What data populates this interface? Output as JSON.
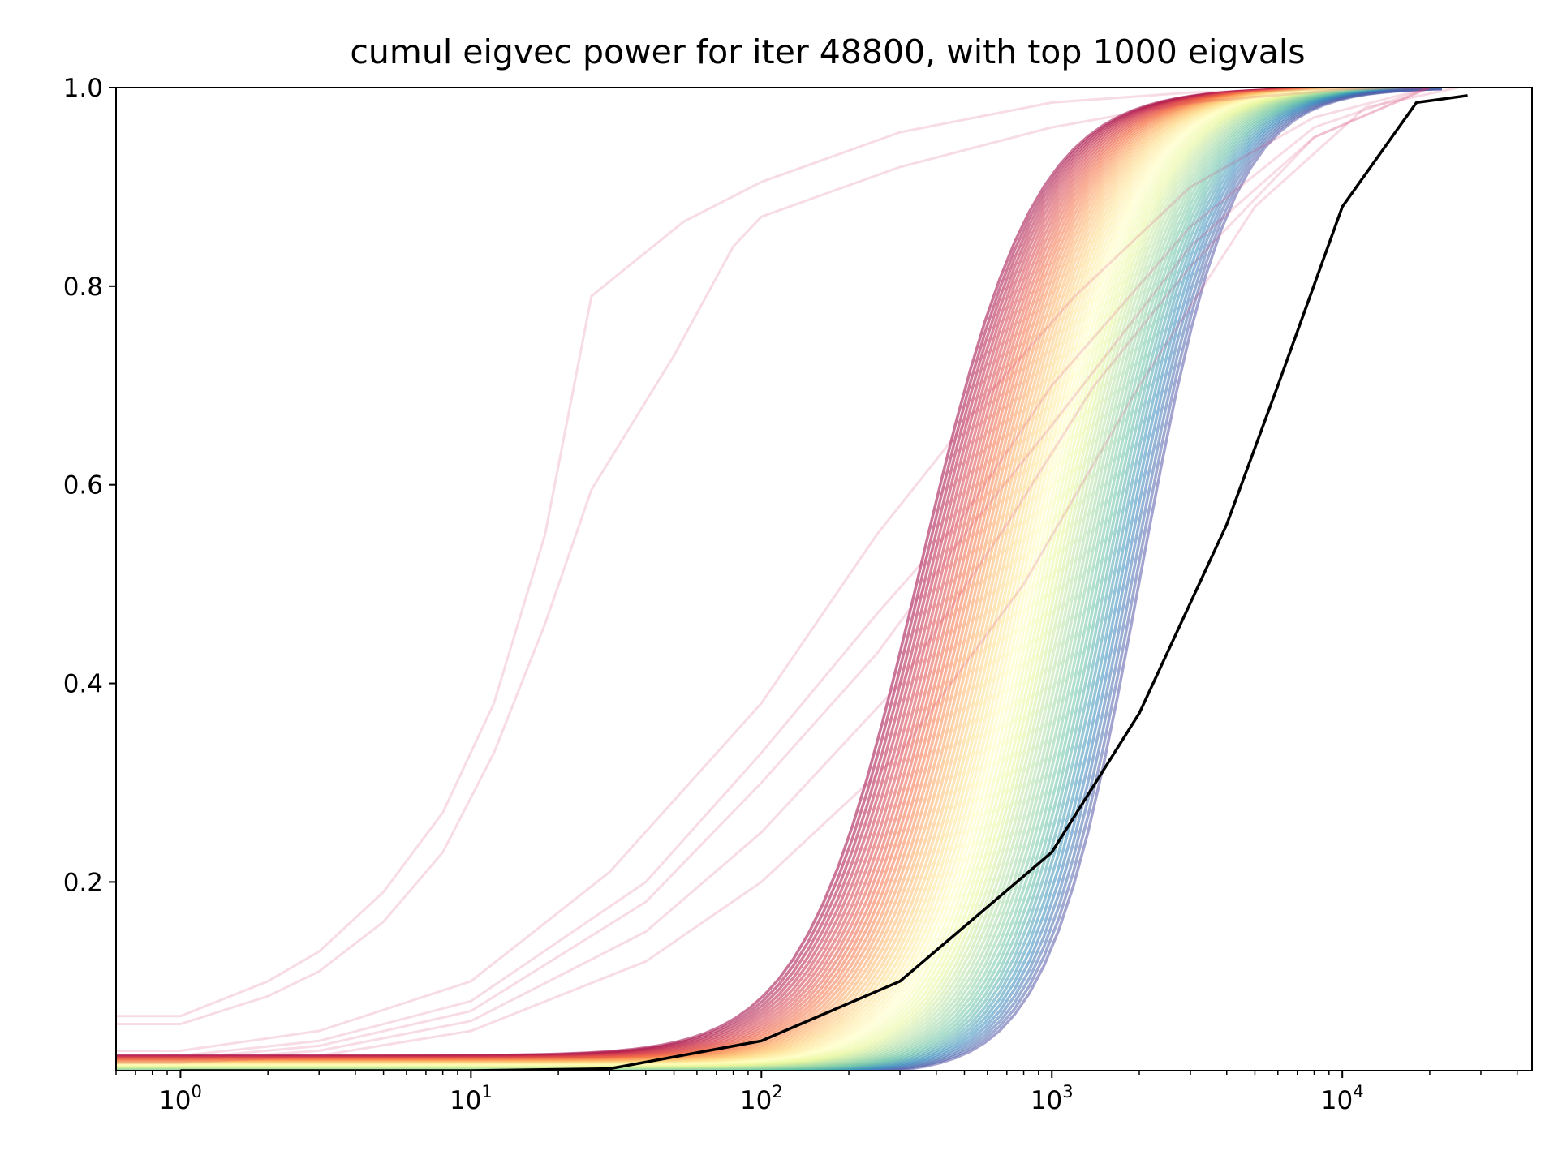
{
  "chart_data": {
    "type": "line",
    "title": "cumul eigvec power for iter 48800, with top 1000 eigvals",
    "xlabel": "",
    "ylabel": "",
    "x_scale": "log",
    "xlim": [
      0.6,
      45000
    ],
    "ylim": [
      0.01,
      1.0
    ],
    "grid": false,
    "legend": "none",
    "x_tick_labels": [
      {
        "base": "10",
        "exp": "0",
        "value": 1
      },
      {
        "base": "10",
        "exp": "1",
        "value": 10
      },
      {
        "base": "10",
        "exp": "2",
        "value": 100
      },
      {
        "base": "10",
        "exp": "3",
        "value": 1000
      },
      {
        "base": "10",
        "exp": "4",
        "value": 10000
      }
    ],
    "y_ticks": [
      {
        "label": "0.2",
        "value": 0.2
      },
      {
        "label": "0.4",
        "value": 0.4
      },
      {
        "label": "0.6",
        "value": 0.6
      },
      {
        "label": "0.8",
        "value": 0.8
      },
      {
        "label": "1.0",
        "value": 1.0
      }
    ],
    "colors": {
      "reference": "#000000",
      "bundle_colormap": "Spectral",
      "outlier": "#d23c6e"
    },
    "series": [
      {
        "color": "#000000",
        "x": [
          1,
          10,
          30,
          100,
          300,
          1000,
          2000,
          4000,
          6000,
          10000,
          18000,
          27000
        ],
        "y": [
          0.0,
          0.001,
          0.012,
          0.04,
          0.1,
          0.23,
          0.37,
          0.56,
          0.7,
          0.88,
          0.985,
          0.992
        ]
      },
      {
        "color": "#d23c6e",
        "x": [
          0.6,
          1,
          2,
          3,
          5,
          8,
          12,
          18,
          26,
          54,
          100,
          300,
          1000,
          3000,
          10000,
          20000
        ],
        "y": [
          0.065,
          0.065,
          0.1,
          0.13,
          0.19,
          0.27,
          0.38,
          0.55,
          0.79,
          0.865,
          0.905,
          0.955,
          0.985,
          0.995,
          0.999,
          1.0
        ]
      },
      {
        "color": "#d23c6e",
        "x": [
          0.6,
          1,
          2,
          3,
          5,
          8,
          12,
          18,
          26,
          50,
          80,
          100,
          300,
          1000,
          3000,
          10000,
          20000
        ],
        "y": [
          0.057,
          0.057,
          0.085,
          0.11,
          0.16,
          0.23,
          0.33,
          0.46,
          0.595,
          0.73,
          0.84,
          0.87,
          0.92,
          0.96,
          0.985,
          0.998,
          1.0
        ]
      },
      {
        "color": "#d23c6e",
        "x": [
          0.6,
          1,
          3,
          10,
          30,
          100,
          250,
          600,
          1200,
          3000,
          8000,
          20000
        ],
        "y": [
          0.03,
          0.03,
          0.05,
          0.1,
          0.21,
          0.38,
          0.55,
          0.69,
          0.79,
          0.9,
          0.97,
          1.0
        ]
      },
      {
        "color": "#d23c6e",
        "x": [
          0.6,
          1,
          3,
          10,
          40,
          100,
          250,
          500,
          1000,
          3000,
          8000,
          20000
        ],
        "y": [
          0.025,
          0.025,
          0.04,
          0.08,
          0.2,
          0.33,
          0.47,
          0.57,
          0.7,
          0.86,
          0.96,
          1.0
        ]
      },
      {
        "color": "#d23c6e",
        "x": [
          0.6,
          1,
          3,
          10,
          40,
          100,
          250,
          500,
          1000,
          3000,
          8000,
          20000
        ],
        "y": [
          0.022,
          0.022,
          0.035,
          0.07,
          0.18,
          0.3,
          0.43,
          0.55,
          0.66,
          0.84,
          0.95,
          1.0
        ]
      },
      {
        "color": "#d23c6e",
        "x": [
          0.6,
          1,
          3,
          10,
          40,
          100,
          300,
          700,
          1400,
          3000,
          8000,
          20000
        ],
        "y": [
          0.02,
          0.02,
          0.03,
          0.06,
          0.15,
          0.25,
          0.4,
          0.56,
          0.7,
          0.82,
          0.95,
          1.0
        ]
      },
      {
        "color": "#d23c6e",
        "x": [
          0.6,
          1,
          3,
          10,
          40,
          100,
          300,
          800,
          2000,
          5000,
          12000,
          25000
        ],
        "y": [
          0.018,
          0.018,
          0.025,
          0.05,
          0.12,
          0.2,
          0.33,
          0.5,
          0.7,
          0.88,
          0.98,
          1.0
        ]
      }
    ],
    "bundle": {
      "count": 60,
      "x_start": 0.6,
      "x_end": 22000,
      "y_start_range": [
        0.005,
        0.025
      ],
      "midpoint_range": [
        350,
        2000
      ],
      "slope_range": [
        1.0,
        1.25
      ]
    }
  }
}
